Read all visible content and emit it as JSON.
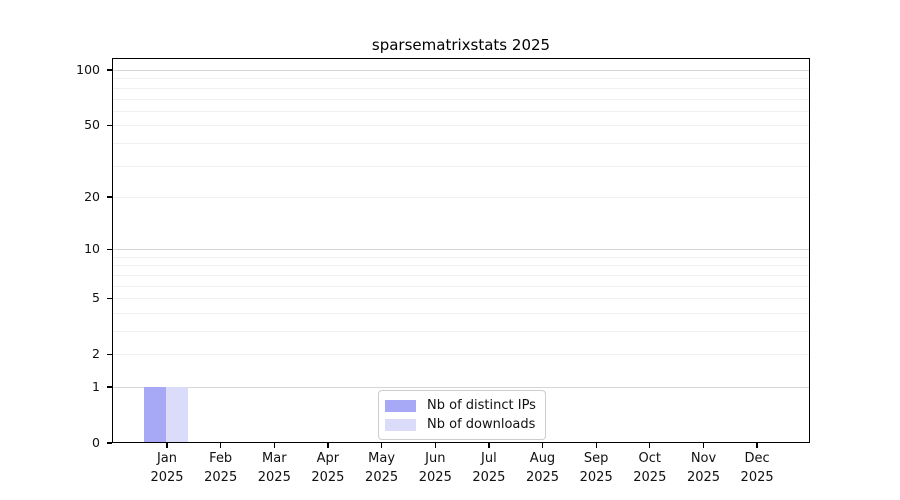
{
  "title": "sparsematrixstats 2025",
  "chart_data": {
    "type": "bar",
    "title": "sparsematrixstats 2025",
    "categories": [
      "Jan",
      "Feb",
      "Mar",
      "Apr",
      "May",
      "Jun",
      "Jul",
      "Aug",
      "Sep",
      "Oct",
      "Nov",
      "Dec"
    ],
    "year": "2025",
    "series": [
      {
        "name": "Nb of distinct IPs",
        "color": "#a8a9f6",
        "values": [
          1,
          0,
          0,
          0,
          0,
          0,
          0,
          0,
          0,
          0,
          0,
          0
        ]
      },
      {
        "name": "Nb of downloads",
        "color": "#dbdcf9",
        "values": [
          1,
          0,
          0,
          0,
          0,
          0,
          0,
          0,
          0,
          0,
          0,
          0
        ]
      }
    ],
    "y_scale": "log1p",
    "y_ticks": [
      0,
      1,
      2,
      5,
      10,
      20,
      50,
      100
    ],
    "gridlines_major": [
      1,
      10,
      100
    ],
    "gridlines_minor": [
      2,
      3,
      4,
      5,
      6,
      7,
      8,
      9,
      20,
      30,
      40,
      50,
      60,
      70,
      80,
      90
    ],
    "ylim": [
      0,
      120
    ],
    "xlabel": "",
    "ylabel": "",
    "grid": "on",
    "legend_position": "lower-center-inside"
  },
  "colors": {
    "distinct_ips": "#a8a9f6",
    "downloads": "#dbdcf9",
    "grid_major": "#d6d6d6",
    "grid_minor": "#f0f0f0",
    "spine": "#000000",
    "legend_border": "#cccccc"
  }
}
